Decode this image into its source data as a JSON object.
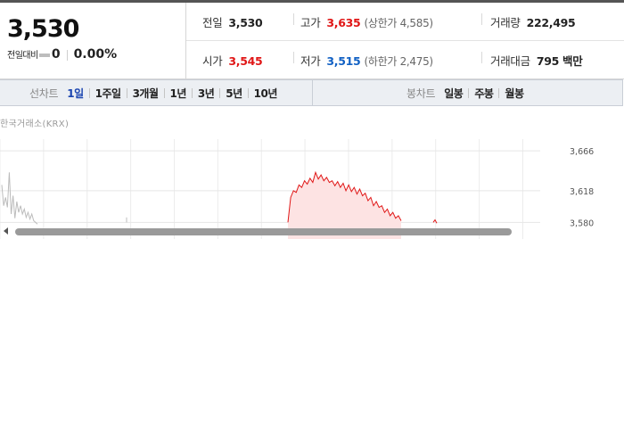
{
  "price": {
    "current": "3,530",
    "change_label": "전일대비",
    "change_value": "0",
    "change_rate": "0.00%"
  },
  "stats": {
    "prev_close": {
      "label": "전일",
      "value": "3,530"
    },
    "high": {
      "label": "고가",
      "value": "3,635",
      "limit_label": "(상한가 4,585)"
    },
    "volume": {
      "label": "거래량",
      "value": "222,495"
    },
    "open": {
      "label": "시가",
      "value": "3,545"
    },
    "low": {
      "label": "저가",
      "value": "3,515",
      "limit_label": "(하한가 2,475)"
    },
    "amount": {
      "label": "거래대금",
      "value": "795 백만"
    }
  },
  "line_tabs": {
    "title": "선차트",
    "items": [
      "1일",
      "1주일",
      "3개월",
      "1년",
      "3년",
      "5년",
      "10년"
    ],
    "active": "1일"
  },
  "candle_tabs": {
    "title": "봉차트",
    "items": [
      "일봉",
      "주봉",
      "월봉"
    ]
  },
  "chart": {
    "exchange": "한국거래소(KRX)"
  },
  "colors": {
    "up": "#e01717",
    "down": "#1261c4",
    "active_tab": "#1b45b0",
    "prior_series": "#bcbcbc"
  },
  "chart_data": {
    "type": "line",
    "title": "",
    "xlabel": "",
    "ylabel": "",
    "y_ticks": [
      "3,666",
      "3,618",
      "3,580"
    ],
    "ylim": [
      3560,
      3680
    ],
    "grid": true,
    "series": [
      {
        "values": [
          3625,
          3600,
          3610,
          3598,
          3640,
          3590,
          3612,
          3585,
          3605,
          3592,
          3600,
          3590,
          3596,
          3586,
          3592,
          3584,
          3590,
          3582,
          3580,
          3578
        ]
      },
      {
        "values": [
          3580,
          3610,
          3618,
          3616,
          3625,
          3622,
          3630,
          3626,
          3633,
          3628,
          3640,
          3632,
          3637,
          3630,
          3634,
          3628,
          3630,
          3624,
          3629,
          3622,
          3627,
          3618,
          3625,
          3617,
          3622,
          3614,
          3620,
          3612,
          3615,
          3606,
          3610,
          3600,
          3605,
          3598,
          3600,
          3592,
          3596,
          3588,
          3592,
          3585,
          3588,
          3582
        ]
      },
      {
        "values": [
          3580,
          3583,
          3579
        ]
      }
    ]
  }
}
